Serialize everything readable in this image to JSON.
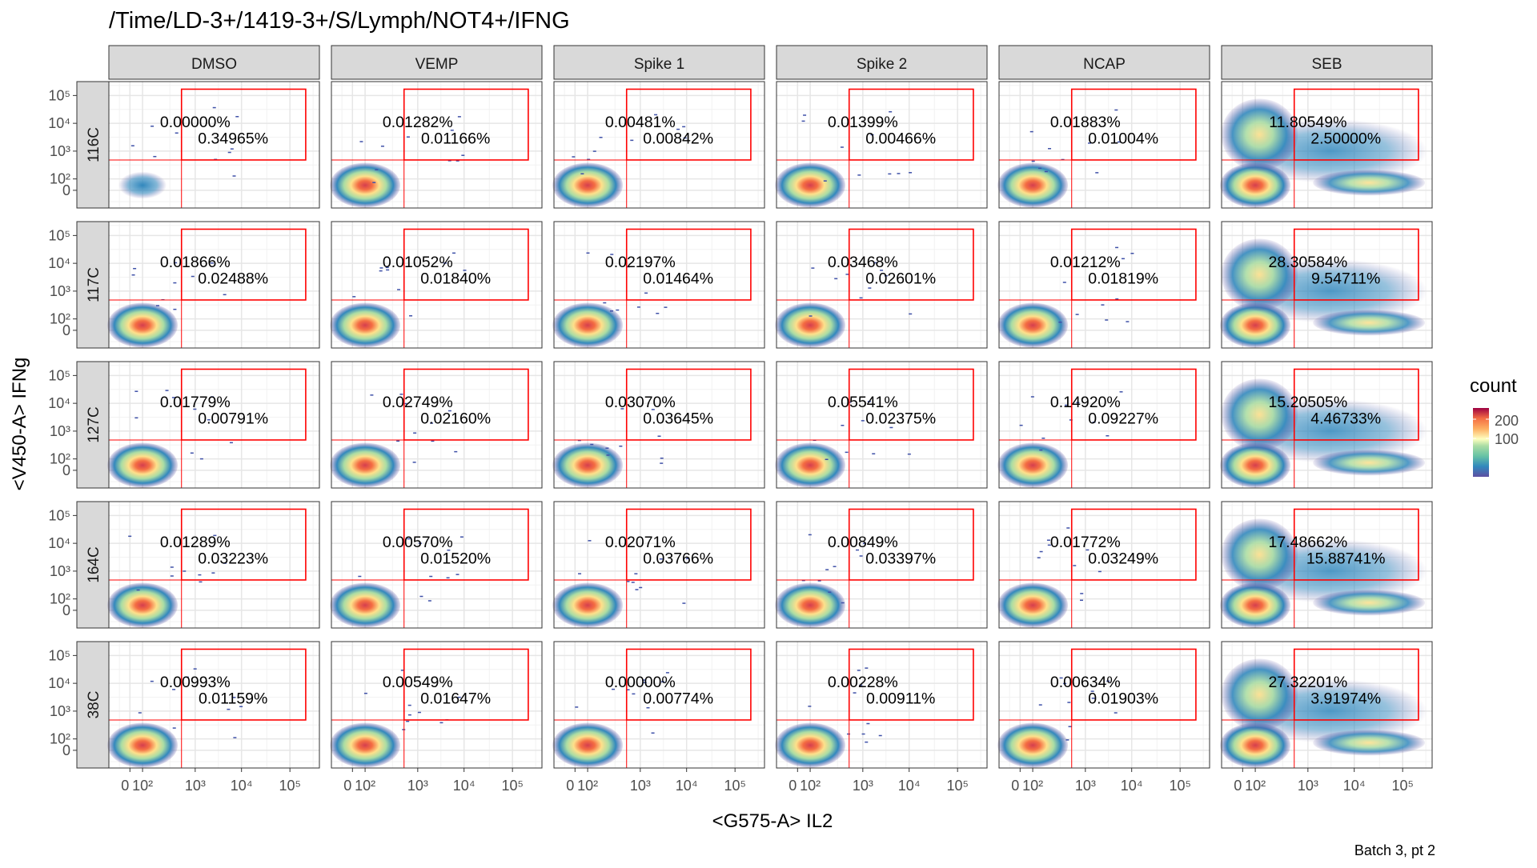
{
  "title": "/Time/LD-3+/1419-3+/S/Lymph/NOT4+/IFNG",
  "xlabel": "<G575-A> IL2",
  "ylabel": "<V450-A> IFNg",
  "caption": "Batch 3, pt 2",
  "legend": {
    "title": "count",
    "ticks": [
      "200",
      "100"
    ]
  },
  "chart_data": {
    "type": "heatmap",
    "columns": [
      "DMSO",
      "VEMP",
      "Spike 1",
      "Spike 2",
      "NCAP",
      "SEB"
    ],
    "rows": [
      "116C",
      "117C",
      "127C",
      "164C",
      "38C"
    ],
    "x_ticks": [
      "0",
      "10²",
      "10³",
      "10⁴",
      "10⁵"
    ],
    "y_ticks": [
      "10⁵",
      "10⁴",
      "10³",
      "10²",
      "0"
    ],
    "gate_percentages": [
      [
        [
          "0.00000%",
          "0.34965%"
        ],
        [
          "0.01282%",
          "0.01166%"
        ],
        [
          "0.00481%",
          "0.00842%"
        ],
        [
          "0.01399%",
          "0.00466%"
        ],
        [
          "0.01883%",
          "0.01004%"
        ],
        [
          "11.80549%",
          "2.50000%"
        ]
      ],
      [
        [
          "0.01866%",
          "0.02488%"
        ],
        [
          "0.01052%",
          "0.01840%"
        ],
        [
          "0.02197%",
          "0.01464%"
        ],
        [
          "0.03468%",
          "0.02601%"
        ],
        [
          "0.01212%",
          "0.01819%"
        ],
        [
          "28.30584%",
          "9.54711%"
        ]
      ],
      [
        [
          "0.01779%",
          "0.00791%"
        ],
        [
          "0.02749%",
          "0.02160%"
        ],
        [
          "0.03070%",
          "0.03645%"
        ],
        [
          "0.05541%",
          "0.02375%"
        ],
        [
          "0.14920%",
          "0.09227%"
        ],
        [
          "15.20505%",
          "4.46733%"
        ]
      ],
      [
        [
          "0.01289%",
          "0.03223%"
        ],
        [
          "0.00570%",
          "0.01520%"
        ],
        [
          "0.02071%",
          "0.03766%"
        ],
        [
          "0.00849%",
          "0.03397%"
        ],
        [
          "0.01772%",
          "0.03249%"
        ],
        [
          "17.48662%",
          "15.88741%"
        ]
      ],
      [
        [
          "0.00993%",
          "0.01159%"
        ],
        [
          "0.00549%",
          "0.01647%"
        ],
        [
          "0.00000%",
          "0.00774%"
        ],
        [
          "0.00228%",
          "0.00911%"
        ],
        [
          "0.00634%",
          "0.01903%"
        ],
        [
          "27.32201%",
          "3.91974%"
        ]
      ]
    ]
  }
}
